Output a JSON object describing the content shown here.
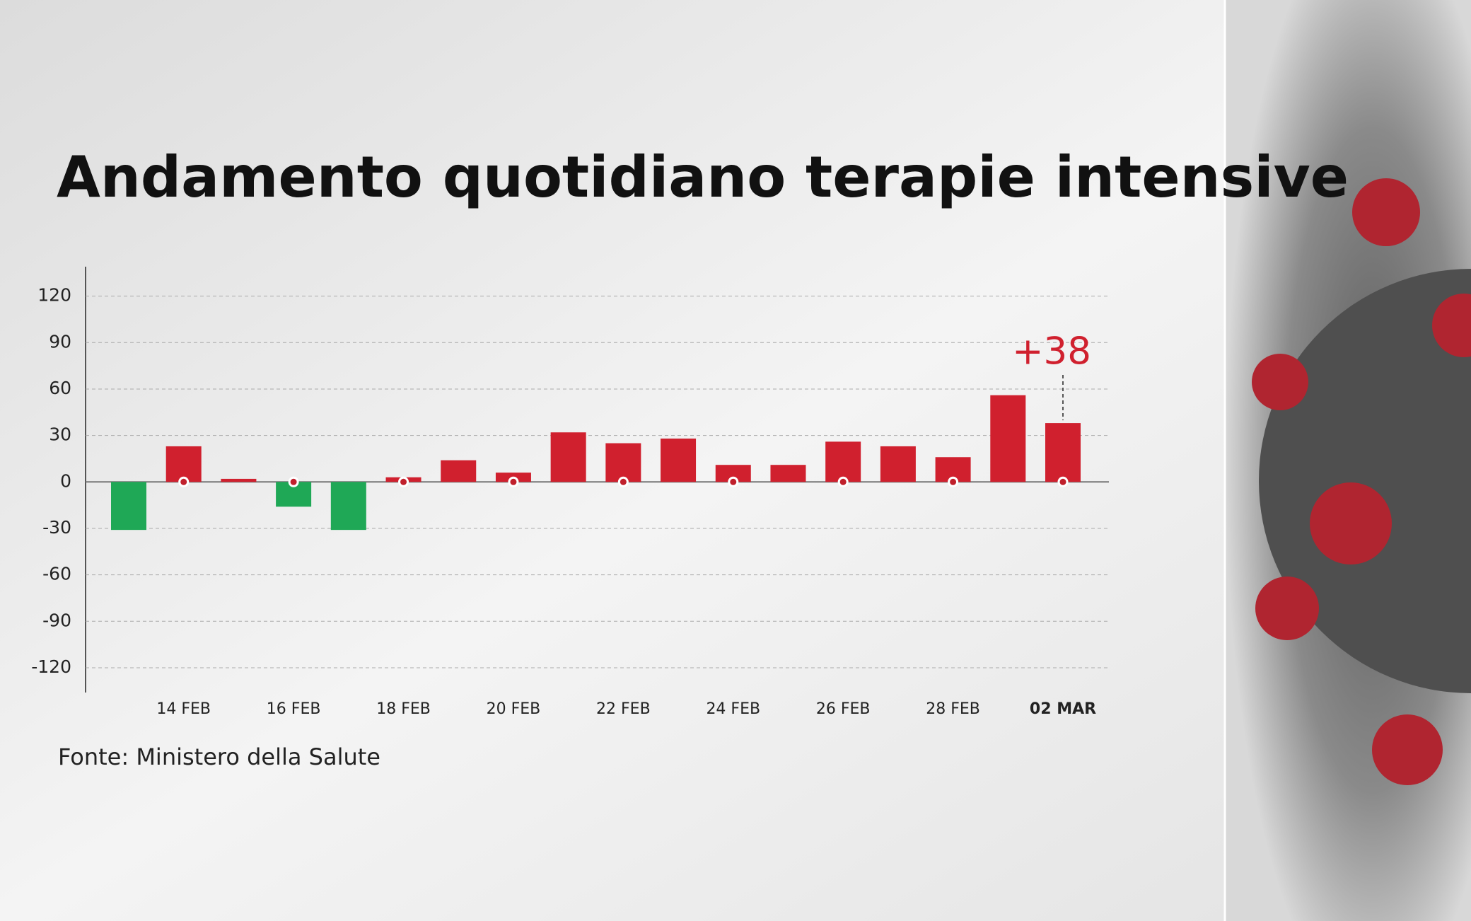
{
  "chart_data": {
    "type": "bar",
    "title": "Andamento quotidiano terapie intensive",
    "source": "Fonte: Ministero della Salute",
    "categories": [
      null,
      "14 FEB",
      null,
      "16 FEB",
      null,
      "18 FEB",
      null,
      "20 FEB",
      null,
      "22 FEB",
      null,
      "24 FEB",
      null,
      "26 FEB",
      null,
      "28 FEB",
      null,
      "02 MAR"
    ],
    "values": [
      -31,
      23,
      2,
      -16,
      -31,
      3,
      14,
      6,
      32,
      25,
      28,
      11,
      11,
      26,
      23,
      16,
      56,
      38
    ],
    "value_labels": [
      null,
      null,
      null,
      null,
      null,
      null,
      null,
      null,
      null,
      null,
      null,
      null,
      null,
      null,
      null,
      null,
      null,
      "+38"
    ],
    "positive_color": "#d0202e",
    "negative_color": "#1fa856",
    "ylim": [
      -136,
      139
    ],
    "yticks": [
      -120,
      -90,
      -60,
      -30,
      0,
      30,
      60,
      90,
      120
    ],
    "grid": true
  }
}
